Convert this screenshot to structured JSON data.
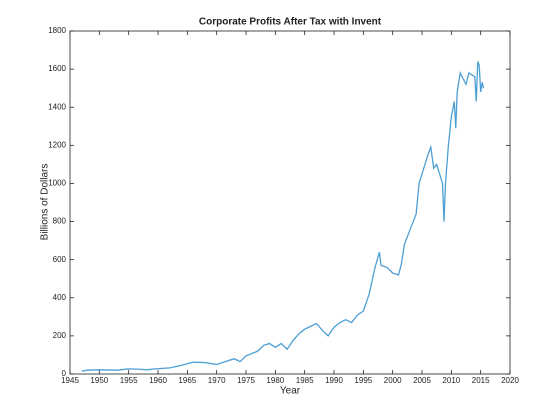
{
  "chart_data": {
    "type": "line",
    "title": "Corporate Profits After Tax with Invent",
    "x_label": "Year",
    "y_label": "Billions of Dollars",
    "x": [
      1947,
      1948,
      1950,
      1953,
      1955,
      1957,
      1958,
      1960,
      1962,
      1964,
      1966,
      1968,
      1970,
      1972,
      1973,
      1974,
      1975,
      1977,
      1978,
      1979,
      1980,
      1981,
      1982,
      1983,
      1984,
      1985,
      1986,
      1987,
      1988,
      1989,
      1990,
      1991,
      1992,
      1993,
      1994,
      1995,
      1996,
      1997,
      1997.75,
      1998,
      1999,
      2000,
      2001,
      2001.5,
      2002,
      2003,
      2004,
      2004.5,
      2005,
      2006,
      2006.5,
      2007,
      2007.5,
      2008,
      2008.5,
      2008.75,
      2009,
      2009.5,
      2010,
      2010.5,
      2010.75,
      2011,
      2011.5,
      2012,
      2012.5,
      2013,
      2014,
      2014.25,
      2014.5,
      2014.75,
      2015,
      2015.25,
      2015.5
    ],
    "series": [
      {
        "name": "Corporate Profits",
        "color": "#4d9fd6",
        "values": [
          15,
          20,
          22,
          20,
          27,
          25,
          22,
          28,
          32,
          45,
          62,
          60,
          50,
          70,
          80,
          65,
          95,
          120,
          150,
          160,
          140,
          160,
          130,
          175,
          210,
          235,
          250,
          265,
          230,
          200,
          245,
          270,
          285,
          270,
          310,
          330,
          420,
          560,
          640,
          570,
          560,
          530,
          520,
          580,
          680,
          760,
          840,
          1000,
          1050,
          1150,
          1190,
          1080,
          1100,
          1050,
          1000,
          800,
          1000,
          1200,
          1350,
          1430,
          1290,
          1480,
          1580,
          1550,
          1520,
          1580,
          1560,
          1430,
          1640,
          1620,
          1480,
          1530,
          1500
        ]
      }
    ],
    "xlim": [
      1945,
      2020
    ],
    "xticks": [
      1945,
      1950,
      1955,
      1960,
      1965,
      1970,
      1975,
      1980,
      1985,
      1990,
      1995,
      2000,
      2005,
      2010,
      2015,
      2020
    ],
    "ylim": [
      0,
      1800
    ],
    "yticks": [
      0,
      200,
      400,
      600,
      800,
      1000,
      1200,
      1400,
      1600,
      1800
    ],
    "grid": false
  }
}
